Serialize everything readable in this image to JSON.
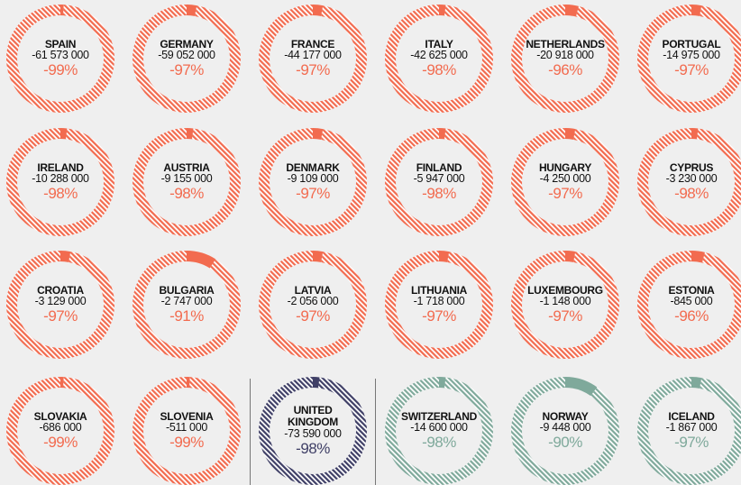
{
  "chart_data": {
    "type": "donut",
    "categories": [
      "SPAIN",
      "GERMANY",
      "FRANCE",
      "ITALY",
      "NETHERLANDS",
      "PORTUGAL",
      "IRELAND",
      "AUSTRIA",
      "DENMARK",
      "FINLAND",
      "HUNGARY",
      "CYPRUS",
      "CROATIA",
      "BULGARIA",
      "LATVIA",
      "LITHUANIA",
      "LUXEMBOURG",
      "ESTONIA",
      "SLOVAKIA",
      "SLOVENIA",
      "UNITED KINGDOM",
      "SWITZERLAND",
      "NORWAY",
      "ICELAND"
    ],
    "values": [
      -61573000,
      -59052000,
      -44177000,
      -42625000,
      -20918000,
      -14975000,
      -10288000,
      -9155000,
      -9109000,
      -5947000,
      -4250000,
      -3230000,
      -3129000,
      -2747000,
      -2056000,
      -1718000,
      -1148000,
      -845000,
      -686000,
      -511000,
      -73590000,
      -14600000,
      -9448000,
      -1867000
    ],
    "value_labels": [
      "-61 573 000",
      "-59 052 000",
      "-44 177 000",
      "-42 625 000",
      "-20 918 000",
      "-14 975 000",
      "-10 288 000",
      "-9 155 000",
      "-9 109 000",
      "-5 947 000",
      "-4 250 000",
      "-3 230 000",
      "-3 129 000",
      "-2 747 000",
      "-2 056 000",
      "-1 718 000",
      "-1 148 000",
      "-845 000",
      "-686 000",
      "-511 000",
      "-73 590 000",
      "-14 600 000",
      "-9 448 000",
      "-1 867 000"
    ],
    "changes": [
      -99,
      -97,
      -97,
      -98,
      -96,
      -97,
      -98,
      -98,
      -97,
      -98,
      -97,
      -98,
      -97,
      -91,
      -97,
      -97,
      -97,
      -96,
      -99,
      -99,
      -98,
      -98,
      -90,
      -97
    ],
    "change_labels": [
      "-99%",
      "-97%",
      "-97%",
      "-98%",
      "-96%",
      "-97%",
      "-98%",
      "-98%",
      "-97%",
      "-98%",
      "-97%",
      "-98%",
      "-97%",
      "-91%",
      "-97%",
      "-97%",
      "-97%",
      "-96%",
      "-99%",
      "-99%",
      "-98%",
      "-98%",
      "-90%",
      "-97%"
    ],
    "colors": [
      "#f26b4f",
      "#f26b4f",
      "#f26b4f",
      "#f26b4f",
      "#f26b4f",
      "#f26b4f",
      "#f26b4f",
      "#f26b4f",
      "#f26b4f",
      "#f26b4f",
      "#f26b4f",
      "#f26b4f",
      "#f26b4f",
      "#f26b4f",
      "#f26b4f",
      "#f26b4f",
      "#f26b4f",
      "#f26b4f",
      "#f26b4f",
      "#f26b4f",
      "#3f3f66",
      "#7fa99b",
      "#7fa99b",
      "#7fa99b"
    ]
  }
}
